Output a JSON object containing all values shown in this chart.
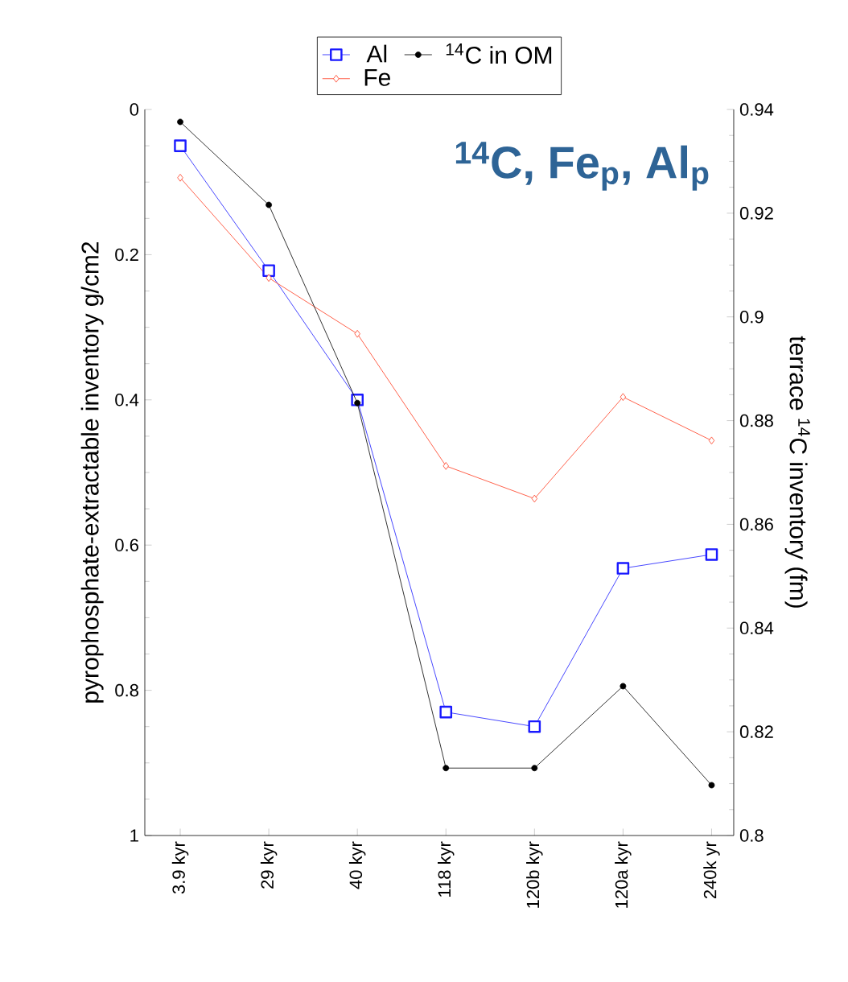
{
  "chart_data": {
    "type": "line",
    "title": "$^{14}$C, Fe$_{p}$, Al$_{p}$",
    "ylabel": "pyrophosphate-extractable inventory g/cm2",
    "y2label": "terrace $^{14}$C inventory (fm)",
    "categories": [
      "3.9 kyr",
      "29 kyr",
      "40 kyr",
      "118 kyr",
      "120b kyr",
      "120a kyr",
      "240k yr"
    ],
    "ylim": [
      1,
      0
    ],
    "yticks": [
      0,
      0.2,
      0.4,
      0.6,
      0.8,
      1
    ],
    "y2lim": [
      0.8,
      0.94
    ],
    "y2ticks": [
      0.8,
      0.82,
      0.84,
      0.86,
      0.88,
      0.9,
      0.92,
      0.94
    ],
    "legend": "top",
    "grid": false,
    "series": [
      {
        "name": "Al",
        "color": "#1a1aff",
        "marker": "square",
        "values": [
          0.05,
          0.222,
          0.4,
          0.83,
          0.85,
          0.632,
          0.613
        ]
      },
      {
        "name": "Fe",
        "color": "#ff3b1f",
        "marker": "diamond",
        "values": [
          0.094,
          0.232,
          0.309,
          0.491,
          0.536,
          0.396,
          0.456
        ]
      },
      {
        "name": "$^{14}$C in OM",
        "color": "#000000",
        "marker": "circle",
        "axis": "y2",
        "values": [
          0.9376,
          0.9216,
          0.8834,
          0.813,
          0.813,
          0.8288,
          0.8097
        ]
      }
    ]
  }
}
